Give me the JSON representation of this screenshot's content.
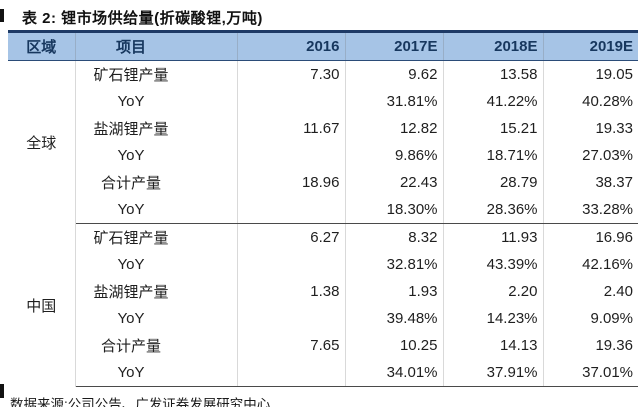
{
  "title": "表 2: 锂市场供给量(折碳酸锂,万吨)",
  "source_note": "数据来源:公司公告、广发证券发展研究中心",
  "colors": {
    "header_background": "#a6c4e6",
    "header_text": "#17375e",
    "top_border": "#1e3a66",
    "rule_line": "#4a4a4a"
  },
  "table": {
    "columns": [
      "区域",
      "项目",
      "2016",
      "2017E",
      "2018E",
      "2019E"
    ],
    "sections": [
      {
        "region": "全球",
        "rows": [
          {
            "cells": [
              "矿石锂产量",
              "7.30",
              "9.62",
              "13.58",
              "19.05"
            ]
          },
          {
            "cells": [
              "YoY",
              "",
              "31.81%",
              "41.22%",
              "40.28%"
            ]
          },
          {
            "cells": [
              "盐湖锂产量",
              "11.67",
              "12.82",
              "15.21",
              "19.33"
            ]
          },
          {
            "cells": [
              "YoY",
              "",
              "9.86%",
              "18.71%",
              "27.03%"
            ]
          },
          {
            "cells": [
              "合计产量",
              "18.96",
              "22.43",
              "28.79",
              "38.37"
            ]
          },
          {
            "cells": [
              "YoY",
              "",
              "18.30%",
              "28.36%",
              "33.28%"
            ]
          }
        ]
      },
      {
        "region": "中国",
        "rows": [
          {
            "cells": [
              "矿石锂产量",
              "6.27",
              "8.32",
              "11.93",
              "16.96"
            ]
          },
          {
            "cells": [
              "YoY",
              "",
              "32.81%",
              "43.39%",
              "42.16%"
            ]
          },
          {
            "cells": [
              "盐湖锂产量",
              "1.38",
              "1.93",
              "2.20",
              "2.40"
            ]
          },
          {
            "cells": [
              "YoY",
              "",
              "39.48%",
              "14.23%",
              "9.09%"
            ]
          },
          {
            "cells": [
              "合计产量",
              "7.65",
              "10.25",
              "14.13",
              "19.36"
            ]
          },
          {
            "cells": [
              "YoY",
              "",
              "34.01%",
              "37.91%",
              "37.01%"
            ]
          }
        ]
      }
    ]
  }
}
